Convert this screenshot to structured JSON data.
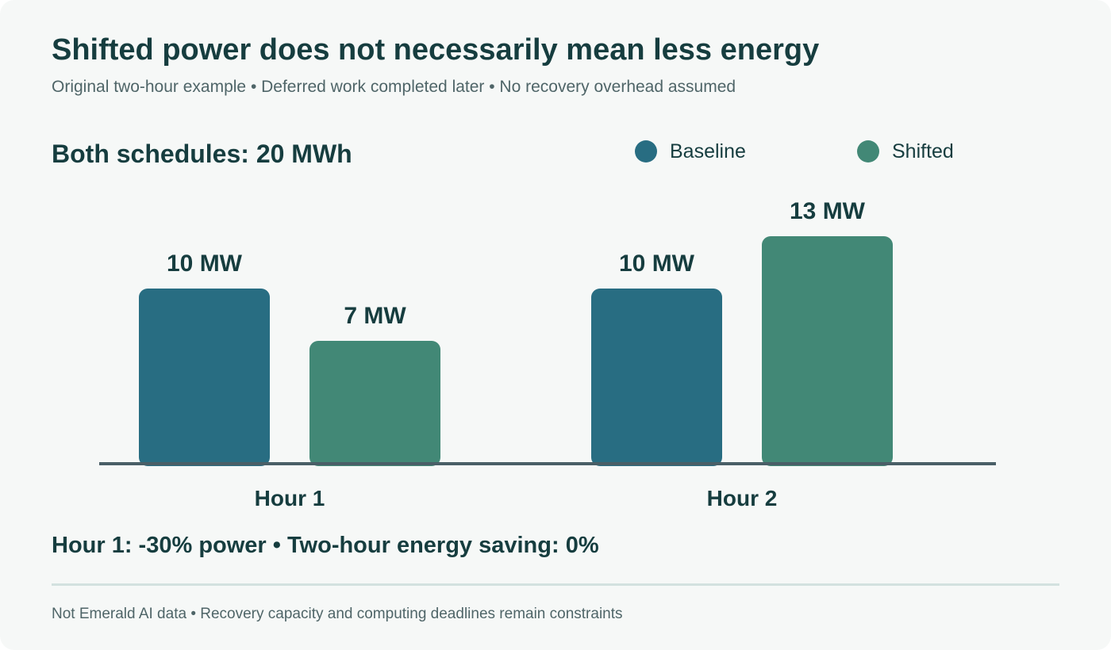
{
  "header": {
    "title": "Shifted power does not necessarily mean less energy",
    "subtitle": "Original two-hour example • Deferred work completed later • No recovery overhead assumed"
  },
  "callout": "Both schedules: 20 MWh",
  "summary": "Hour 1: -30% power • Two-hour energy saving: 0%",
  "footnote": "Not Emerald AI data • Recovery capacity and computing deadlines remain constraints",
  "colors": {
    "baseline": "#286d82",
    "shifted": "#428876",
    "axis": "#4a5f67",
    "text": "#163d3f"
  },
  "chart_data": {
    "type": "bar",
    "categories": [
      "Hour 1",
      "Hour 2"
    ],
    "unit": "MW",
    "series": [
      {
        "name": "Baseline",
        "values": [
          10,
          10
        ],
        "labels": [
          "10 MW",
          "10 MW"
        ]
      },
      {
        "name": "Shifted",
        "values": [
          7,
          13
        ],
        "labels": [
          "7 MW",
          "13 MW"
        ]
      }
    ],
    "ylim": [
      0,
      15
    ],
    "grid": false,
    "legend": "top-right"
  }
}
